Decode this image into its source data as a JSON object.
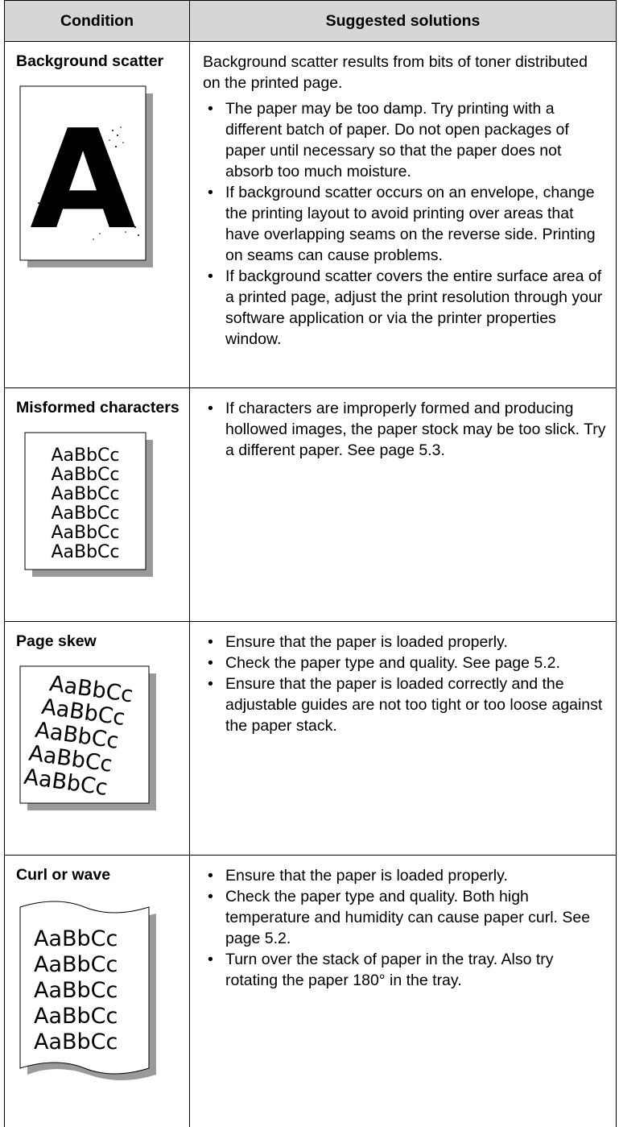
{
  "table": {
    "header": [
      "Condition",
      "Suggested solutions"
    ],
    "rows": [
      {
        "condition": "Background scatter",
        "illustration": [
          "A"
        ],
        "intro": "Background scatter results from bits of toner distributed on the printed page.",
        "bullets": [
          "The paper may be too damp. Try printing with a different batch of paper. Do not open packages of paper until necessary so that the paper does not absorb too much moisture.",
          "If background scatter occurs on an envelope, change the printing layout to avoid printing over areas that have overlapping seams on the reverse side. Printing on seams can cause problems.",
          "If background scatter covers the entire surface area of a printed page, adjust the print resolution through your software application or via the printer properties window."
        ]
      },
      {
        "condition": "Misformed characters",
        "illustration": [
          "AaBbCc",
          "AaBbCc",
          "AaBbCc",
          "AaBbCc",
          "AaBbCc",
          "AaBbCc"
        ],
        "bullets": [
          "If characters are improperly formed and producing hollowed images, the paper stock may be too slick. Try a different paper. See page 5.3."
        ]
      },
      {
        "condition": "Page skew",
        "illustration": [
          "AaBbCc",
          "AaBbCc",
          "AaBbCc",
          "AaBbCc",
          "AaBbCc"
        ],
        "bullets": [
          "Ensure that the paper is loaded properly.",
          "Check the paper type and quality. See page 5.2.",
          "Ensure that the paper is loaded correctly and the adjustable guides are not too tight or too loose against the paper stack."
        ]
      },
      {
        "condition": "Curl or wave",
        "illustration": [
          "AaBbCc",
          "AaBbCc",
          "AaBbCc",
          "AaBbCc",
          "AaBbCc"
        ],
        "bullets": [
          "Ensure that the paper is loaded properly.",
          "Check the paper type and quality. Both high temperature and humidity can cause paper curl. See page 5.2.",
          "Turn over the stack of paper in the tray. Also try rotating the paper 180° in the tray."
        ]
      }
    ]
  }
}
